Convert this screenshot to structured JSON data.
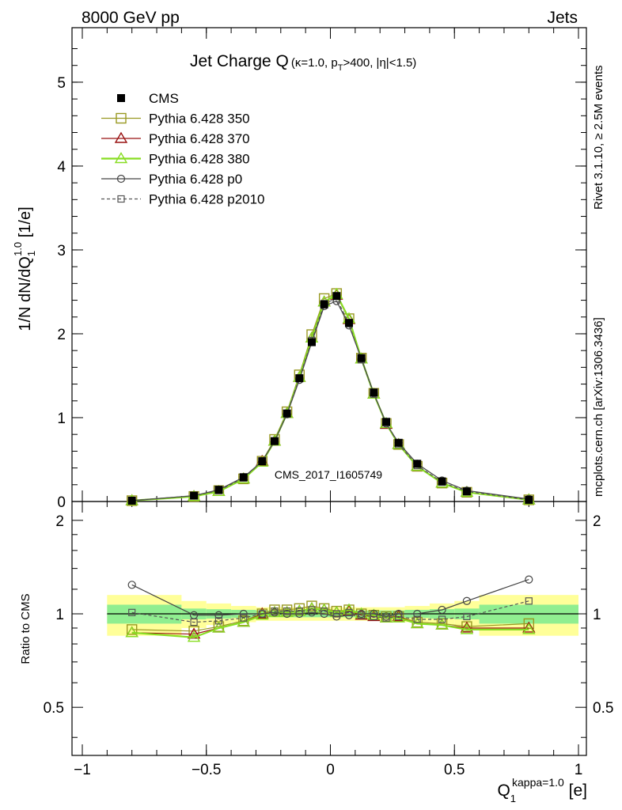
{
  "header": {
    "left": "8000 GeV pp",
    "right": "Jets"
  },
  "side_text": {
    "rivet": "Rivet 3.1.10, ≥ 2.5M events",
    "mcplots": "mcplots.cern.ch [arXiv:1306.3436]"
  },
  "chart_data": {
    "type": "line",
    "title": "Jet Charge Q",
    "title_sub": "(κ=1.0, p_T>400, |η|<1.5)",
    "watermark": "CMS_2017_I1605749",
    "xlabel": "Q_1^{kappa=1.0} [e]",
    "ylabel": "1/N dN/dQ_1^{1.0} [1/e]",
    "ratio_ylabel": "Ratio to CMS",
    "xlim": [
      -1.0,
      1.0
    ],
    "ylim": [
      0,
      5.65
    ],
    "ratio_ylim": [
      0.35,
      2.3
    ],
    "ratio_scale": "log",
    "legend_position": "top-left",
    "x_ticks": [
      "−1",
      "−0.5",
      "0",
      "0.5",
      "1"
    ],
    "y_ticks": [
      "0",
      "1",
      "2",
      "3",
      "4",
      "5"
    ],
    "ratio_ticks": [
      "0.5",
      "1",
      "2"
    ],
    "x": [
      -0.8,
      -0.55,
      -0.45,
      -0.35,
      -0.275,
      -0.225,
      -0.175,
      -0.125,
      -0.075,
      -0.025,
      0.025,
      0.075,
      0.125,
      0.175,
      0.225,
      0.275,
      0.35,
      0.45,
      0.55,
      0.8
    ],
    "series": [
      {
        "name": "CMS",
        "color": "#000000",
        "marker": "filled-square",
        "dash": false,
        "values": [
          0.01,
          0.07,
          0.14,
          0.29,
          0.48,
          0.72,
          1.05,
          1.47,
          1.9,
          2.35,
          2.45,
          2.13,
          1.71,
          1.3,
          0.95,
          0.7,
          0.45,
          0.24,
          0.12,
          0.02
        ],
        "ratio": [
          1,
          1,
          1,
          1,
          1,
          1,
          1,
          1,
          1,
          1,
          1,
          1,
          1,
          1,
          1,
          1,
          1,
          1,
          1,
          1
        ]
      },
      {
        "name": "Pythia 6.428 350",
        "color": "#999922",
        "marker": "open-square",
        "dash": false,
        "values": [
          0.01,
          0.06,
          0.13,
          0.27,
          0.48,
          0.74,
          1.07,
          1.51,
          1.99,
          2.42,
          2.48,
          2.18,
          1.71,
          1.29,
          0.93,
          0.68,
          0.42,
          0.22,
          0.11,
          0.02
        ],
        "ratio": [
          0.89,
          0.88,
          0.91,
          0.95,
          1.0,
          1.03,
          1.03,
          1.04,
          1.06,
          1.04,
          1.02,
          1.03,
          1.0,
          0.99,
          0.98,
          0.98,
          0.94,
          0.93,
          0.91,
          0.93
        ]
      },
      {
        "name": "Pythia 6.428 370",
        "color": "#991111",
        "marker": "open-triangle",
        "dash": false,
        "values": [
          0.01,
          0.06,
          0.12,
          0.27,
          0.48,
          0.72,
          1.05,
          1.48,
          1.95,
          2.38,
          2.46,
          2.17,
          1.7,
          1.28,
          0.92,
          0.68,
          0.42,
          0.22,
          0.11,
          0.02
        ],
        "ratio": [
          0.87,
          0.86,
          0.9,
          0.94,
          1.0,
          1.01,
          1.01,
          1.02,
          1.04,
          1.03,
          1.01,
          1.02,
          0.99,
          0.98,
          0.97,
          0.98,
          0.93,
          0.92,
          0.9,
          0.9
        ]
      },
      {
        "name": "Pythia 6.428 380",
        "color": "#88dd22",
        "marker": "open-triangle",
        "dash": false,
        "values": [
          0.01,
          0.06,
          0.12,
          0.27,
          0.47,
          0.72,
          1.05,
          1.48,
          1.95,
          2.38,
          2.47,
          2.18,
          1.7,
          1.28,
          0.93,
          0.68,
          0.42,
          0.22,
          0.11,
          0.02
        ],
        "ratio": [
          0.87,
          0.84,
          0.9,
          0.94,
          0.99,
          1.01,
          1.01,
          1.02,
          1.04,
          1.03,
          1.01,
          1.03,
          1.0,
          0.99,
          0.97,
          0.97,
          0.93,
          0.92,
          0.89,
          0.89
        ]
      },
      {
        "name": "Pythia 6.428 p0",
        "color": "#444444",
        "marker": "open-circle",
        "dash": false,
        "values": [
          0.01,
          0.07,
          0.14,
          0.29,
          0.48,
          0.72,
          1.04,
          1.45,
          1.9,
          2.33,
          2.39,
          2.1,
          1.7,
          1.29,
          0.93,
          0.7,
          0.45,
          0.25,
          0.13,
          0.03
        ],
        "ratio": [
          1.24,
          0.99,
          0.99,
          1.0,
          1.0,
          1.01,
          1.0,
          1.0,
          1.01,
          1.0,
          0.98,
          0.99,
          1.0,
          1.0,
          0.98,
          1.0,
          1.0,
          1.03,
          1.1,
          1.29
        ]
      },
      {
        "name": "Pythia 6.428 p2010",
        "color": "#555555",
        "marker": "open-square-small",
        "dash": true,
        "values": [
          0.01,
          0.07,
          0.13,
          0.28,
          0.48,
          0.72,
          1.05,
          1.47,
          1.92,
          2.36,
          2.42,
          2.12,
          1.69,
          1.28,
          0.94,
          0.68,
          0.43,
          0.23,
          0.12,
          0.02
        ],
        "ratio": [
          1.01,
          0.94,
          0.95,
          0.97,
          1.0,
          1.02,
          1.02,
          1.02,
          1.03,
          1.02,
          1.0,
          1.01,
          0.99,
          0.98,
          0.97,
          0.98,
          0.96,
          0.96,
          0.98,
          1.1
        ]
      }
    ],
    "uncertainty_bands": {
      "edges": [
        -0.9,
        -0.6,
        -0.5,
        -0.4,
        -0.3,
        0.3,
        0.4,
        0.5,
        0.6,
        1.0
      ],
      "inner": [
        0.07,
        0.04,
        0.035,
        0.03,
        0.025,
        0.03,
        0.035,
        0.04,
        0.07
      ],
      "outer": [
        0.15,
        0.1,
        0.08,
        0.06,
        0.05,
        0.06,
        0.08,
        0.1,
        0.15
      ],
      "inner_color": "#90ee90",
      "outer_color": "#ffff99"
    }
  }
}
